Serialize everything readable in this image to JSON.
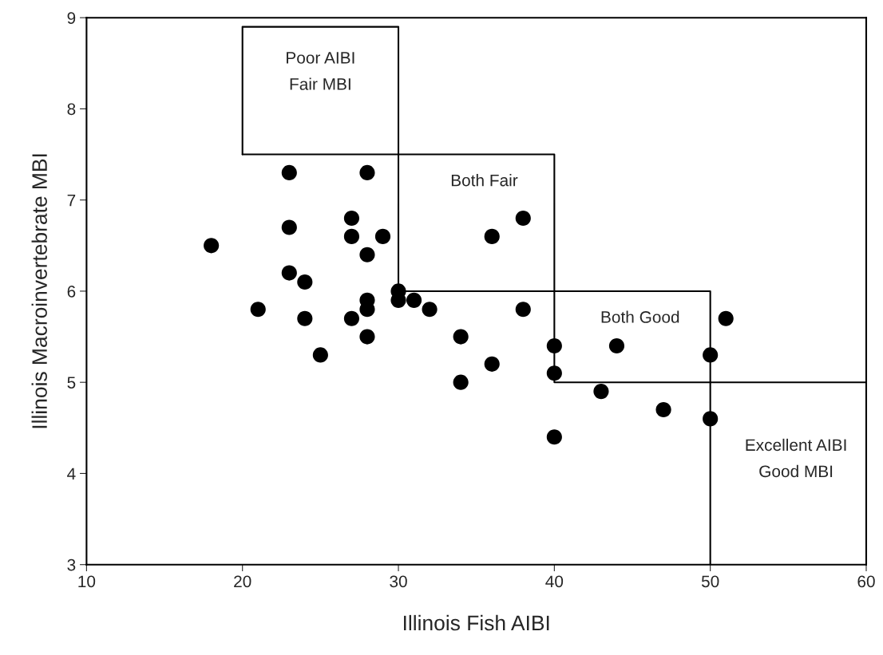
{
  "chart_data": {
    "type": "scatter",
    "xlabel": "Illinois Fish AIBI",
    "ylabel": "Illinois Macroinvertebrate MBI",
    "xlim": [
      10,
      60
    ],
    "ylim": [
      3,
      9
    ],
    "xticks": [
      10,
      20,
      30,
      40,
      50,
      60
    ],
    "yticks": [
      3,
      4,
      5,
      6,
      7,
      8,
      9
    ],
    "marker": "circle",
    "series": [
      {
        "color": "#000000",
        "x": [
          23,
          28,
          27,
          23,
          18,
          27,
          29,
          28,
          23,
          24,
          30,
          30,
          28,
          28,
          21,
          24,
          27,
          28,
          25,
          31,
          38,
          36,
          32,
          38,
          34,
          40,
          44,
          50,
          36,
          40,
          34,
          43,
          51,
          47,
          50,
          40
        ],
        "values": [
          7.3,
          7.3,
          6.8,
          6.7,
          6.5,
          6.6,
          6.6,
          6.4,
          6.2,
          6.1,
          6.0,
          5.9,
          5.9,
          5.8,
          5.8,
          5.7,
          5.7,
          5.5,
          5.3,
          5.9,
          6.8,
          6.6,
          5.8,
          5.8,
          5.5,
          5.4,
          5.4,
          5.3,
          5.2,
          5.1,
          5.0,
          4.9,
          5.7,
          4.7,
          4.6,
          4.4
        ]
      },
      {
        "type": "line",
        "marker": "none",
        "color": "#000000",
        "x": [
          20,
          20,
          30,
          30,
          50,
          50
        ],
        "values": [
          7.5,
          8.9,
          8.9,
          6,
          6,
          3
        ]
      },
      {
        "type": "line",
        "marker": "none",
        "color": "#000000",
        "x": [
          20,
          40,
          40,
          60
        ],
        "values": [
          7.5,
          7.5,
          5,
          5
        ]
      }
    ],
    "annotations": [
      "Poor AIBI\nFair MBI",
      "Both Fair",
      "Both Good",
      "Excellent AIBI\nGood MBI"
    ]
  }
}
